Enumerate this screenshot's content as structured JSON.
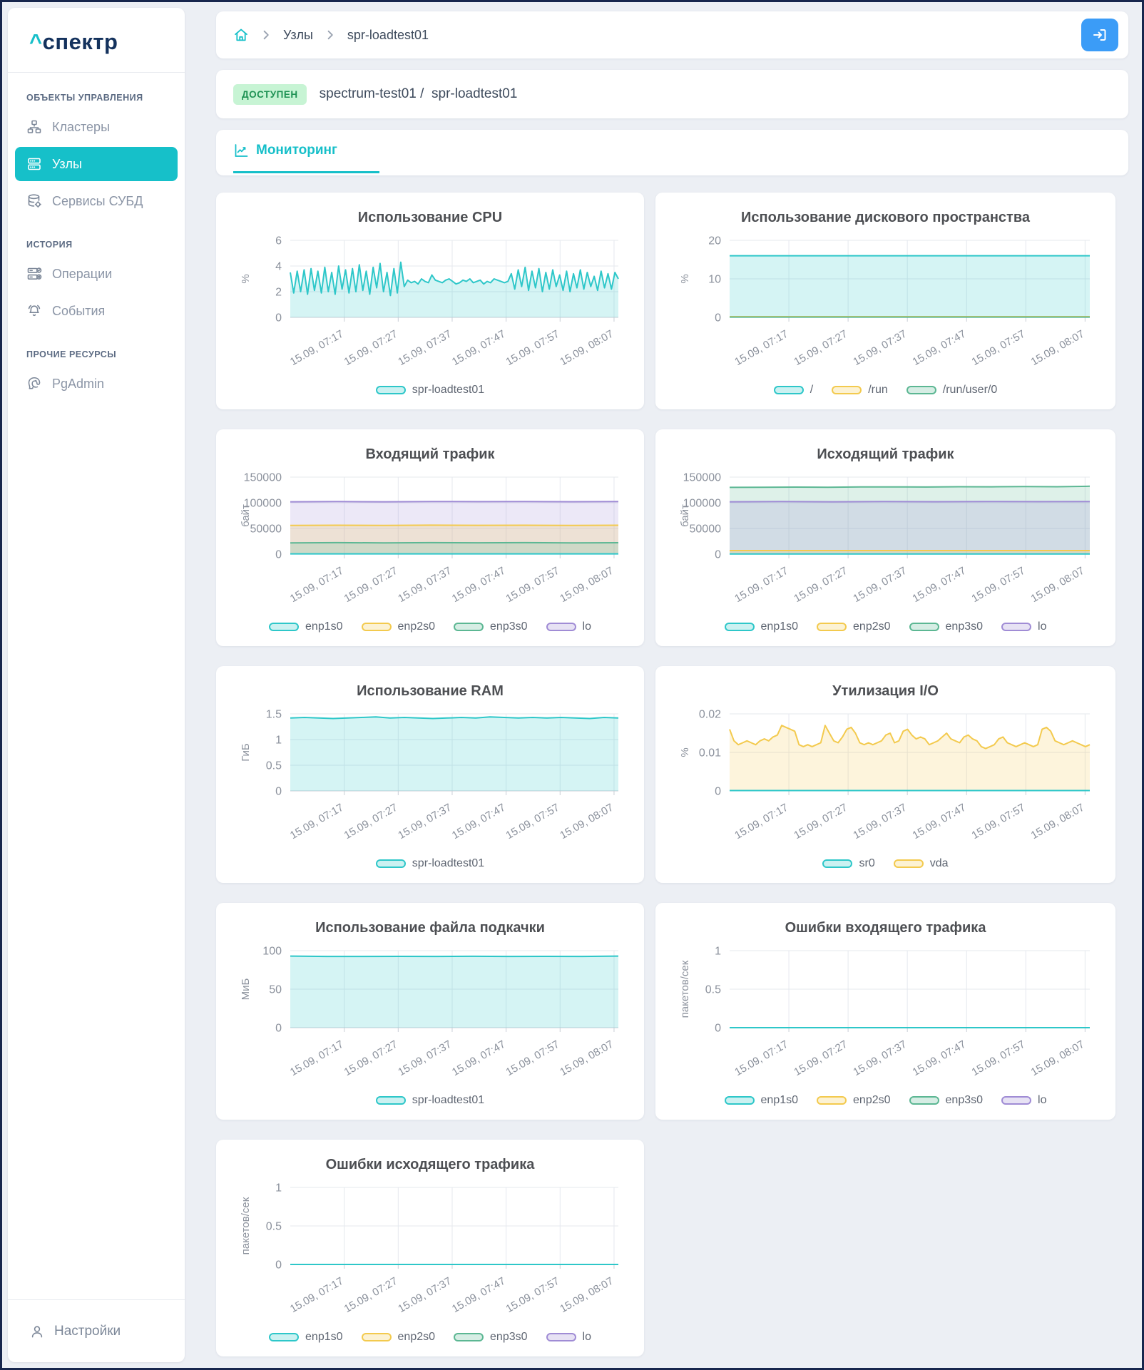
{
  "app": {
    "logo_caret": "^",
    "logo_word": "спектр"
  },
  "colors": {
    "teal": "#2ec7c9",
    "yellow": "#f3ca4e",
    "green": "#5cb793",
    "purple": "#a08cd5",
    "accent": "#16c0c9",
    "logo_navy": "#14325d",
    "status_ok_bg": "#c7f4d4",
    "status_ok_text": "#1f9254",
    "logout_blue": "#3b9cf7"
  },
  "sidebar": {
    "sections": [
      {
        "title": "ОБЪЕКТЫ УПРАВЛЕНИЯ",
        "items": [
          {
            "label": "Кластеры"
          },
          {
            "label": "Узлы"
          },
          {
            "label": "Сервисы СУБД"
          }
        ]
      },
      {
        "title": "ИСТОРИЯ",
        "items": [
          {
            "label": "Операции"
          },
          {
            "label": "События"
          }
        ]
      },
      {
        "title": "ПРОЧИЕ РЕСУРСЫ",
        "items": [
          {
            "label": "PgAdmin"
          }
        ]
      }
    ],
    "footer": {
      "label": "Настройки"
    }
  },
  "header": {
    "breadcrumbs": [
      "Узлы",
      "spr-loadtest01"
    ]
  },
  "node": {
    "status": "ДОСТУПЕН",
    "cluster": "spectrum-test01",
    "separator": "/",
    "name": "spr-loadtest01"
  },
  "tabs": [
    {
      "label": "Мониторинг",
      "active": true
    }
  ],
  "x_labels": [
    "15.09, 07:17",
    "15.09, 07:27",
    "15.09, 07:37",
    "15.09, 07:47",
    "15.09, 07:57",
    "15.09, 08:07"
  ],
  "chart_data": [
    {
      "id": "cpu",
      "type": "area",
      "title": "Использование CPU",
      "ylabel": "%",
      "yticks": [
        0,
        2,
        4,
        6
      ],
      "ylim": [
        0,
        6
      ],
      "legend": [
        {
          "label": "spr-loadtest01",
          "color": "teal"
        }
      ],
      "series": [
        {
          "name": "spr-loadtest01",
          "color": "teal",
          "values": [
            3.5,
            1.9,
            3.6,
            2.0,
            3.7,
            1.8,
            3.8,
            2.1,
            3.6,
            1.9,
            3.9,
            2.0,
            3.5,
            1.8,
            4.0,
            2.2,
            3.7,
            1.9,
            3.8,
            2.0,
            4.1,
            2.1,
            3.6,
            1.8,
            3.9,
            2.3,
            4.2,
            2.0,
            3.5,
            1.7,
            3.8,
            1.9,
            4.3,
            2.4,
            2.9,
            2.7,
            2.8,
            2.6,
            3.0,
            2.8,
            2.7,
            3.3,
            2.9,
            2.8,
            2.7,
            2.9,
            3.0,
            2.8,
            2.6,
            2.7,
            2.9,
            2.8,
            3.0,
            2.7,
            2.8,
            2.9,
            2.6,
            2.8,
            2.7,
            3.0,
            2.9,
            2.8,
            2.7,
            2.8,
            3.4,
            2.2,
            3.7,
            2.4,
            3.9,
            2.1,
            3.6,
            2.3,
            3.8,
            2.0,
            3.5,
            2.2,
            3.7,
            2.4,
            3.3,
            2.1,
            3.6,
            2.0,
            3.4,
            2.3,
            3.7,
            2.2,
            3.5,
            2.4,
            3.2,
            2.1,
            3.6,
            2.3,
            3.4,
            2.2,
            3.5,
            3.0
          ]
        }
      ]
    },
    {
      "id": "disk",
      "type": "area",
      "title": "Использование дискового пространства",
      "ylabel": "%",
      "yticks": [
        0,
        10,
        20
      ],
      "ylim": [
        0,
        20
      ],
      "legend": [
        {
          "label": "/",
          "color": "teal"
        },
        {
          "label": "/run",
          "color": "yellow"
        },
        {
          "label": "/run/user/0",
          "color": "green"
        }
      ],
      "series": [
        {
          "name": "/",
          "color": "teal",
          "values": [
            16,
            16
          ]
        },
        {
          "name": "/run",
          "color": "yellow",
          "values": [
            0.18,
            0.18
          ]
        },
        {
          "name": "/run/user/0",
          "color": "green",
          "values": [
            0.08,
            0.08
          ]
        }
      ]
    },
    {
      "id": "traffic-in",
      "type": "area",
      "title": "Входящий трафик",
      "ylabel": "байт",
      "yticks": [
        0,
        50000,
        100000,
        150000
      ],
      "ylim": [
        0,
        150000
      ],
      "legend": [
        {
          "label": "enp1s0",
          "color": "teal"
        },
        {
          "label": "enp2s0",
          "color": "yellow"
        },
        {
          "label": "enp3s0",
          "color": "green"
        },
        {
          "label": "lo",
          "color": "purple"
        }
      ],
      "series": [
        {
          "name": "lo",
          "color": "purple",
          "values": [
            102000,
            102300,
            102000,
            102500,
            102200,
            102500,
            102100,
            102400
          ]
        },
        {
          "name": "enp2s0",
          "color": "yellow",
          "values": [
            56000,
            56300,
            56000,
            56400,
            56100,
            56300,
            56000,
            56200
          ]
        },
        {
          "name": "enp3s0",
          "color": "green",
          "values": [
            22000,
            22300,
            22000,
            22400,
            22100,
            22300,
            22000,
            22200
          ]
        },
        {
          "name": "enp1s0",
          "color": "teal",
          "values": [
            500,
            500
          ]
        }
      ]
    },
    {
      "id": "traffic-out",
      "type": "area",
      "title": "Исходящий трафик",
      "ylabel": "байт",
      "yticks": [
        0,
        50000,
        100000,
        150000
      ],
      "ylim": [
        0,
        150000
      ],
      "legend": [
        {
          "label": "enp1s0",
          "color": "teal"
        },
        {
          "label": "enp2s0",
          "color": "yellow"
        },
        {
          "label": "enp3s0",
          "color": "green"
        },
        {
          "label": "lo",
          "color": "purple"
        }
      ],
      "series": [
        {
          "name": "enp3s0",
          "color": "green",
          "values": [
            130000,
            130200,
            130500,
            130300,
            130800,
            131000,
            130700,
            131300,
            131100,
            131600,
            131300,
            132200
          ]
        },
        {
          "name": "lo",
          "color": "purple",
          "values": [
            102000,
            102300,
            102000,
            102400,
            102100,
            102500,
            102200,
            102400
          ]
        },
        {
          "name": "enp2s0",
          "color": "yellow",
          "values": [
            7000,
            7000
          ]
        },
        {
          "name": "enp1s0",
          "color": "teal",
          "values": [
            400,
            400
          ]
        }
      ]
    },
    {
      "id": "ram",
      "type": "area",
      "title": "Использование RAM",
      "ylabel": "ГиБ",
      "yticks": [
        0,
        0.5,
        1,
        1.5
      ],
      "ylim": [
        0,
        1.5
      ],
      "legend": [
        {
          "label": "spr-loadtest01",
          "color": "teal"
        }
      ],
      "series": [
        {
          "name": "spr-loadtest01",
          "color": "teal",
          "values": [
            1.42,
            1.43,
            1.42,
            1.41,
            1.42,
            1.43,
            1.44,
            1.42,
            1.43,
            1.42,
            1.41,
            1.42,
            1.43,
            1.42,
            1.44,
            1.43,
            1.42,
            1.43,
            1.42,
            1.43,
            1.42,
            1.41,
            1.43,
            1.42
          ]
        }
      ]
    },
    {
      "id": "io",
      "type": "area",
      "title": "Утилизация I/O",
      "ylabel": "%",
      "yticks": [
        0,
        0.01,
        0.02
      ],
      "ylim": [
        0,
        0.02
      ],
      "legend": [
        {
          "label": "sr0",
          "color": "teal"
        },
        {
          "label": "vda",
          "color": "yellow"
        }
      ],
      "series": [
        {
          "name": "vda",
          "color": "yellow",
          "values": [
            0.016,
            0.013,
            0.012,
            0.0125,
            0.013,
            0.0125,
            0.012,
            0.013,
            0.0135,
            0.013,
            0.014,
            0.0145,
            0.017,
            0.0165,
            0.016,
            0.0155,
            0.012,
            0.0115,
            0.012,
            0.0115,
            0.012,
            0.0125,
            0.017,
            0.015,
            0.013,
            0.0125,
            0.014,
            0.016,
            0.0165,
            0.015,
            0.0125,
            0.012,
            0.0125,
            0.012,
            0.0125,
            0.013,
            0.0145,
            0.015,
            0.0125,
            0.013,
            0.0155,
            0.016,
            0.0145,
            0.0135,
            0.014,
            0.0135,
            0.012,
            0.0125,
            0.013,
            0.014,
            0.015,
            0.0135,
            0.013,
            0.0125,
            0.014,
            0.0145,
            0.0135,
            0.013,
            0.0115,
            0.011,
            0.0115,
            0.012,
            0.0135,
            0.014,
            0.0125,
            0.012,
            0.0115,
            0.012,
            0.0125,
            0.012,
            0.0115,
            0.012,
            0.016,
            0.0165,
            0.0155,
            0.013,
            0.0125,
            0.012,
            0.0125,
            0.013,
            0.0125,
            0.012,
            0.0115,
            0.012
          ]
        },
        {
          "name": "sr0",
          "color": "teal",
          "values": [
            0.0001,
            0.0001
          ]
        }
      ]
    },
    {
      "id": "swap",
      "type": "area",
      "title": "Использование файла подкачки",
      "ylabel": "МиБ",
      "yticks": [
        0,
        50,
        100
      ],
      "ylim": [
        0,
        100
      ],
      "legend": [
        {
          "label": "spr-loadtest01",
          "color": "teal"
        }
      ],
      "series": [
        {
          "name": "spr-loadtest01",
          "color": "teal",
          "values": [
            93,
            92.5,
            92.5,
            92.6,
            92.5,
            92.7,
            92.5,
            92.6,
            92.5,
            93
          ]
        }
      ]
    },
    {
      "id": "errors-in",
      "type": "line",
      "title": "Ошибки входящего трафика",
      "ylabel": "пакетов/сек",
      "yticks": [
        0,
        0.5,
        1
      ],
      "ylim": [
        0,
        1
      ],
      "legend": [
        {
          "label": "enp1s0",
          "color": "teal"
        },
        {
          "label": "enp2s0",
          "color": "yellow"
        },
        {
          "label": "enp3s0",
          "color": "green"
        },
        {
          "label": "lo",
          "color": "purple"
        }
      ],
      "series": [
        {
          "name": "lo",
          "color": "purple",
          "values": [
            0,
            0
          ]
        },
        {
          "name": "enp2s0",
          "color": "yellow",
          "values": [
            0,
            0
          ]
        },
        {
          "name": "enp3s0",
          "color": "green",
          "values": [
            0,
            0
          ]
        },
        {
          "name": "enp1s0",
          "color": "teal",
          "values": [
            0,
            0
          ]
        }
      ]
    },
    {
      "id": "errors-out",
      "type": "line",
      "title": "Ошибки исходящего трафика",
      "ylabel": "пакетов/сек",
      "yticks": [
        0,
        0.5,
        1
      ],
      "ylim": [
        0,
        1
      ],
      "legend": [
        {
          "label": "enp1s0",
          "color": "teal"
        },
        {
          "label": "enp2s0",
          "color": "yellow"
        },
        {
          "label": "enp3s0",
          "color": "green"
        },
        {
          "label": "lo",
          "color": "purple"
        }
      ],
      "series": [
        {
          "name": "lo",
          "color": "purple",
          "values": [
            0,
            0
          ]
        },
        {
          "name": "enp2s0",
          "color": "yellow",
          "values": [
            0,
            0
          ]
        },
        {
          "name": "enp3s0",
          "color": "green",
          "values": [
            0,
            0
          ]
        },
        {
          "name": "enp1s0",
          "color": "teal",
          "values": [
            0,
            0
          ]
        }
      ]
    }
  ]
}
